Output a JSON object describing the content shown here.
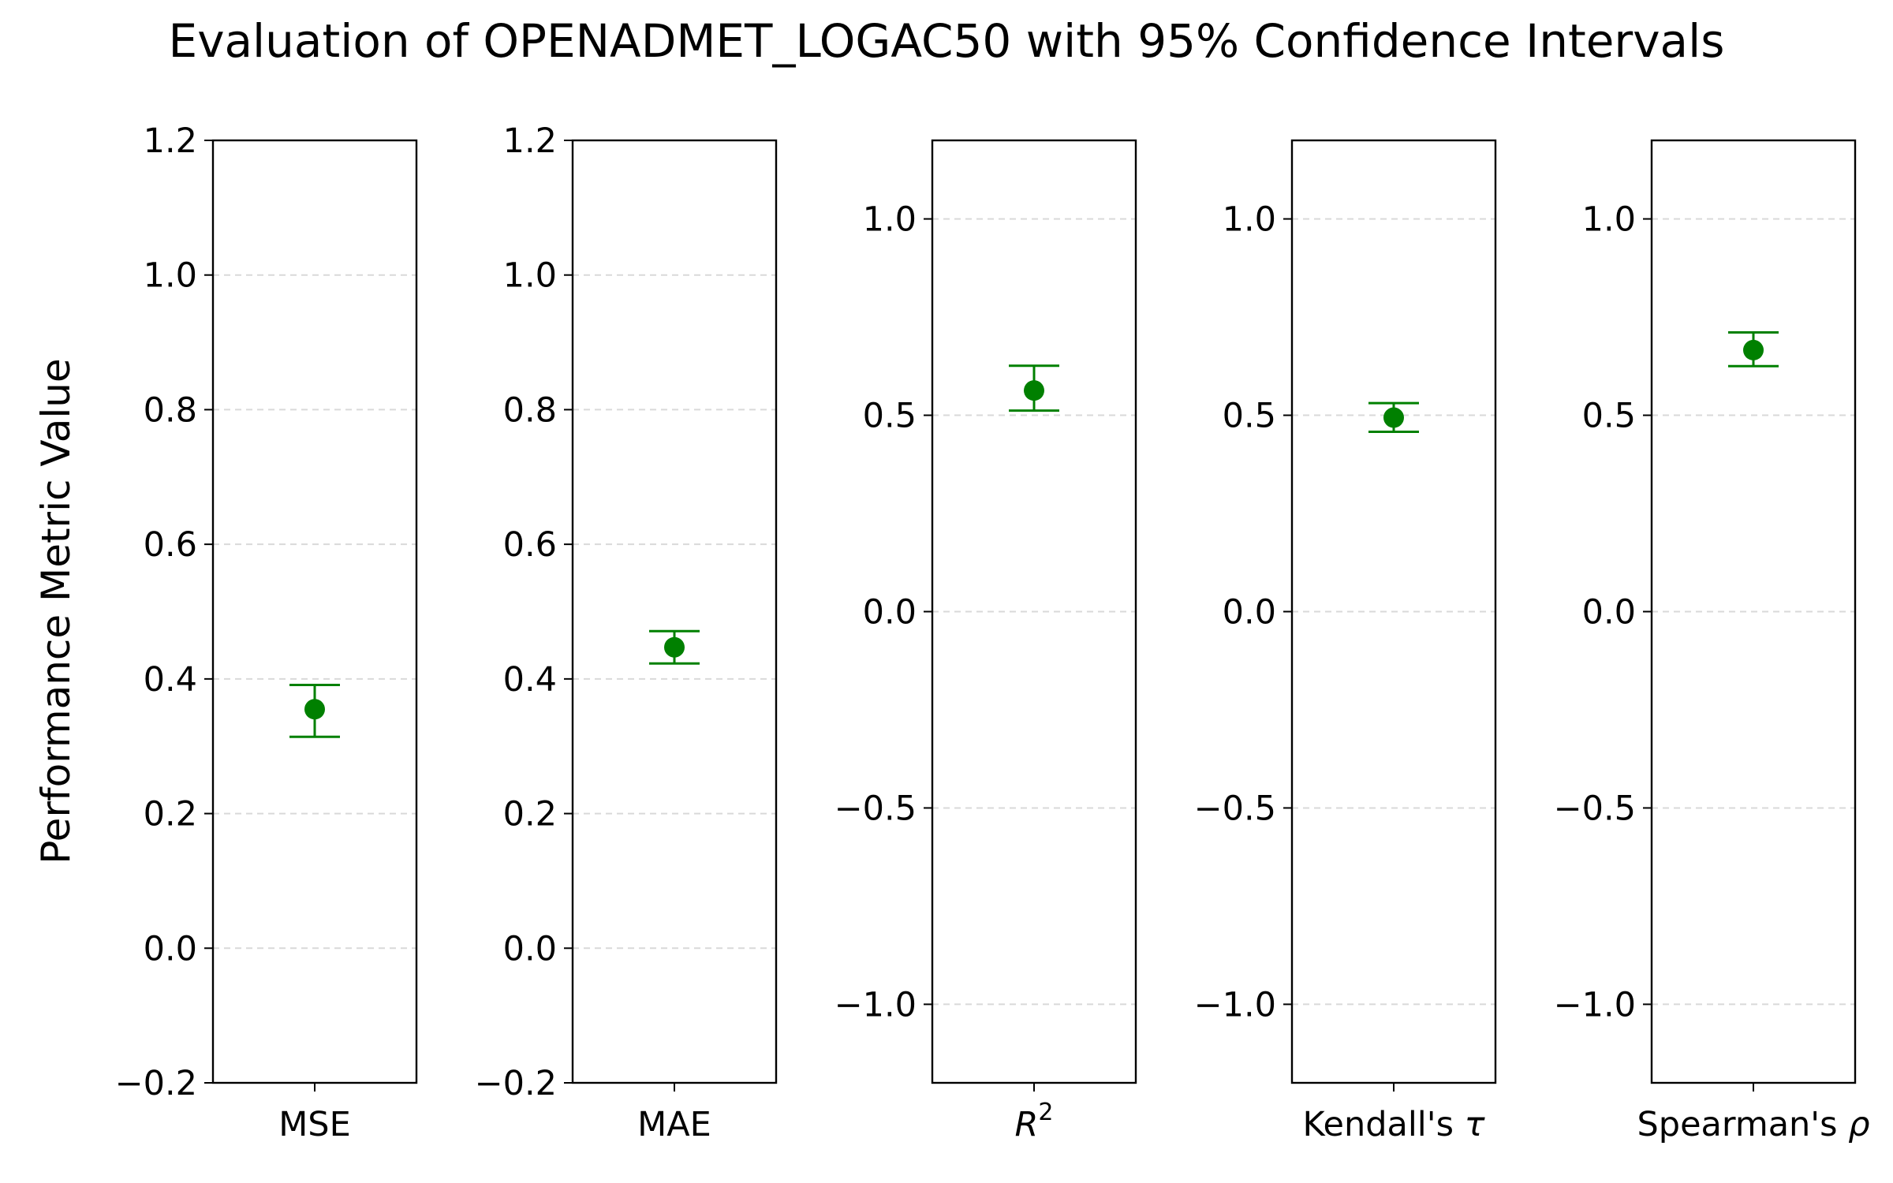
{
  "title": "Evaluation of OPENADMET_LOGAC50 with 95% Confidence Intervals",
  "ylabel": "Performance Metric Value",
  "colors": {
    "point": "#008000",
    "errorbar": "#008000",
    "grid": "#d9d9d9",
    "axes": "#000000"
  },
  "chart_data": [
    {
      "type": "scatter",
      "category": "MSE",
      "value": 0.355,
      "ci": [
        0.314,
        0.391
      ],
      "ylim": [
        -0.2,
        1.2
      ],
      "yticks": [
        -0.2,
        0.0,
        0.2,
        0.4,
        0.6,
        0.8,
        1.0,
        1.2
      ],
      "ytick_labels": [
        "−0.2",
        "0.0",
        "0.2",
        "0.4",
        "0.6",
        "0.8",
        "1.0",
        "1.2"
      ],
      "grid_y": true
    },
    {
      "type": "scatter",
      "category": "MAE",
      "value": 0.447,
      "ci": [
        0.423,
        0.471
      ],
      "ylim": [
        -0.2,
        1.2
      ],
      "yticks": [
        -0.2,
        0.0,
        0.2,
        0.4,
        0.6,
        0.8,
        1.0,
        1.2
      ],
      "ytick_labels": [
        "−0.2",
        "0.0",
        "0.2",
        "0.4",
        "0.6",
        "0.8",
        "1.0",
        "1.2"
      ],
      "grid_y": true
    },
    {
      "type": "scatter",
      "category_base": "R",
      "category_sup": "2",
      "value": 0.563,
      "ci": [
        0.512,
        0.626
      ],
      "ylim": [
        -1.2,
        1.2
      ],
      "yticks": [
        -1.0,
        -0.5,
        0.0,
        0.5,
        1.0
      ],
      "ytick_labels": [
        "−1.0",
        "−0.5",
        "0.0",
        "0.5",
        "1.0"
      ],
      "grid_y": true
    },
    {
      "type": "scatter",
      "category_base": "Kendall's ",
      "category_symbol": "τ",
      "value": 0.494,
      "ci": [
        0.458,
        0.531
      ],
      "ylim": [
        -1.2,
        1.2
      ],
      "yticks": [
        -1.0,
        -0.5,
        0.0,
        0.5,
        1.0
      ],
      "ytick_labels": [
        "−1.0",
        "−0.5",
        "0.0",
        "0.5",
        "1.0"
      ],
      "grid_y": true
    },
    {
      "type": "scatter",
      "category_base": "Spearman's ",
      "category_symbol": "ρ",
      "value": 0.666,
      "ci": [
        0.625,
        0.711
      ],
      "ylim": [
        -1.2,
        1.2
      ],
      "yticks": [
        -1.0,
        -0.5,
        0.0,
        0.5,
        1.0
      ],
      "ytick_labels": [
        "−1.0",
        "−0.5",
        "0.0",
        "0.5",
        "1.0"
      ],
      "grid_y": true
    }
  ]
}
